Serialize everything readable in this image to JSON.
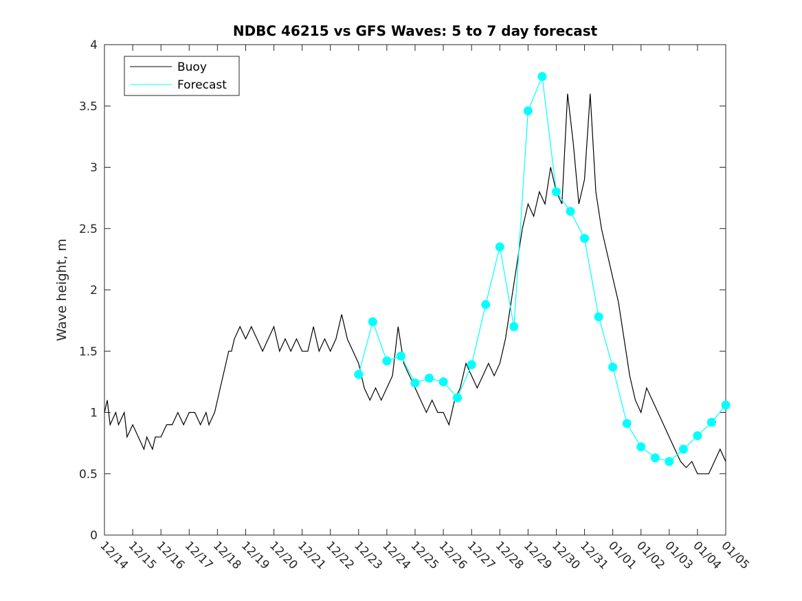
{
  "chart_data": {
    "type": "line",
    "title": "NDBC 46215 vs GFS Waves: 5 to 7 day forecast",
    "xlabel": "",
    "ylabel": "Wave height, m",
    "xlim": [
      0,
      22
    ],
    "ylim": [
      0,
      4
    ],
    "yticks": [
      0,
      0.5,
      1,
      1.5,
      2,
      2.5,
      3,
      3.5,
      4
    ],
    "ytick_labels": [
      "0",
      "0.5",
      "1",
      "1.5",
      "2",
      "2.5",
      "3",
      "3.5",
      "4"
    ],
    "xtick_labels": [
      "12/14",
      "12/15",
      "12/16",
      "12/17",
      "12/18",
      "12/19",
      "12/20",
      "12/21",
      "12/22",
      "12/23",
      "12/24",
      "12/25",
      "12/26",
      "12/27",
      "12/28",
      "12/29",
      "12/30",
      "12/31",
      "01/01",
      "01/02",
      "01/03",
      "01/04",
      "01/05"
    ],
    "legend": {
      "position": "top-left",
      "entries": [
        {
          "name": "Buoy",
          "color": "#000000"
        },
        {
          "name": "Forecast",
          "color": "#00ffff"
        }
      ]
    },
    "colors": {
      "buoy": "#000000",
      "forecast": "#00ffff"
    },
    "series": [
      {
        "name": "Buoy",
        "color": "#000000",
        "points": [
          [
            0,
            1.0
          ],
          [
            0.1,
            1.1
          ],
          [
            0.2,
            0.9
          ],
          [
            0.4,
            1.0
          ],
          [
            0.5,
            0.9
          ],
          [
            0.7,
            1.0
          ],
          [
            0.8,
            0.8
          ],
          [
            1.0,
            0.9
          ],
          [
            1.2,
            0.8
          ],
          [
            1.4,
            0.7
          ],
          [
            1.5,
            0.8
          ],
          [
            1.7,
            0.7
          ],
          [
            1.8,
            0.8
          ],
          [
            2.0,
            0.8
          ],
          [
            2.2,
            0.9
          ],
          [
            2.4,
            0.9
          ],
          [
            2.6,
            1.0
          ],
          [
            2.8,
            0.9
          ],
          [
            3.0,
            1.0
          ],
          [
            3.2,
            1.0
          ],
          [
            3.4,
            0.9
          ],
          [
            3.6,
            1.0
          ],
          [
            3.7,
            0.9
          ],
          [
            3.9,
            1.0
          ],
          [
            4.0,
            1.1
          ],
          [
            4.1,
            1.2
          ],
          [
            4.2,
            1.3
          ],
          [
            4.3,
            1.4
          ],
          [
            4.4,
            1.5
          ],
          [
            4.5,
            1.5
          ],
          [
            4.6,
            1.6
          ],
          [
            4.8,
            1.7
          ],
          [
            5.0,
            1.6
          ],
          [
            5.2,
            1.7
          ],
          [
            5.4,
            1.6
          ],
          [
            5.6,
            1.5
          ],
          [
            5.8,
            1.6
          ],
          [
            6.0,
            1.7
          ],
          [
            6.2,
            1.5
          ],
          [
            6.4,
            1.6
          ],
          [
            6.6,
            1.5
          ],
          [
            6.8,
            1.6
          ],
          [
            7.0,
            1.5
          ],
          [
            7.2,
            1.5
          ],
          [
            7.4,
            1.7
          ],
          [
            7.6,
            1.5
          ],
          [
            7.8,
            1.6
          ],
          [
            8.0,
            1.5
          ],
          [
            8.2,
            1.6
          ],
          [
            8.4,
            1.8
          ],
          [
            8.6,
            1.6
          ],
          [
            8.8,
            1.5
          ],
          [
            9.0,
            1.4
          ],
          [
            9.2,
            1.2
          ],
          [
            9.4,
            1.1
          ],
          [
            9.6,
            1.2
          ],
          [
            9.8,
            1.1
          ],
          [
            10.0,
            1.2
          ],
          [
            10.2,
            1.3
          ],
          [
            10.4,
            1.7
          ],
          [
            10.6,
            1.4
          ],
          [
            10.8,
            1.3
          ],
          [
            11.0,
            1.2
          ],
          [
            11.2,
            1.1
          ],
          [
            11.4,
            1.0
          ],
          [
            11.6,
            1.1
          ],
          [
            11.8,
            1.0
          ],
          [
            12.0,
            1.0
          ],
          [
            12.2,
            0.9
          ],
          [
            12.4,
            1.1
          ],
          [
            12.6,
            1.2
          ],
          [
            12.8,
            1.4
          ],
          [
            13.0,
            1.3
          ],
          [
            13.2,
            1.2
          ],
          [
            13.4,
            1.3
          ],
          [
            13.6,
            1.4
          ],
          [
            13.8,
            1.3
          ],
          [
            14.0,
            1.4
          ],
          [
            14.2,
            1.6
          ],
          [
            14.4,
            1.9
          ],
          [
            14.6,
            2.2
          ],
          [
            14.8,
            2.5
          ],
          [
            15.0,
            2.7
          ],
          [
            15.2,
            2.6
          ],
          [
            15.4,
            2.8
          ],
          [
            15.6,
            2.7
          ],
          [
            15.8,
            3.0
          ],
          [
            16.0,
            2.8
          ],
          [
            16.2,
            2.7
          ],
          [
            16.4,
            3.6
          ],
          [
            16.6,
            3.2
          ],
          [
            16.8,
            2.7
          ],
          [
            17.0,
            2.9
          ],
          [
            17.2,
            3.6
          ],
          [
            17.4,
            2.8
          ],
          [
            17.6,
            2.5
          ],
          [
            17.8,
            2.3
          ],
          [
            18.0,
            2.1
          ],
          [
            18.2,
            1.9
          ],
          [
            18.4,
            1.6
          ],
          [
            18.6,
            1.3
          ],
          [
            18.8,
            1.1
          ],
          [
            19.0,
            1.0
          ],
          [
            19.2,
            1.2
          ],
          [
            19.4,
            1.1
          ],
          [
            19.6,
            1.0
          ],
          [
            19.8,
            0.9
          ],
          [
            20.0,
            0.8
          ],
          [
            20.2,
            0.7
          ],
          [
            20.4,
            0.6
          ],
          [
            20.6,
            0.55
          ],
          [
            20.8,
            0.6
          ],
          [
            21.0,
            0.5
          ],
          [
            21.2,
            0.5
          ],
          [
            21.4,
            0.5
          ],
          [
            21.6,
            0.6
          ],
          [
            21.8,
            0.7
          ],
          [
            22.0,
            0.6
          ]
        ]
      },
      {
        "name": "Forecast",
        "color": "#00ffff",
        "markers": [
          [
            9.0,
            1.31
          ],
          [
            9.5,
            1.74
          ],
          [
            10.0,
            1.42
          ],
          [
            10.5,
            1.46
          ],
          [
            11.0,
            1.24
          ],
          [
            11.5,
            1.28
          ],
          [
            12.0,
            1.25
          ],
          [
            12.5,
            1.12
          ],
          [
            13.0,
            1.39
          ],
          [
            13.5,
            1.88
          ],
          [
            14.0,
            2.35
          ],
          [
            14.5,
            1.7
          ],
          [
            15.0,
            3.46
          ],
          [
            15.5,
            3.74
          ],
          [
            16.0,
            2.8
          ],
          [
            16.5,
            2.64
          ],
          [
            17.0,
            2.42
          ],
          [
            17.5,
            1.78
          ],
          [
            18.0,
            1.37
          ],
          [
            18.5,
            0.91
          ],
          [
            19.0,
            0.72
          ],
          [
            19.5,
            0.63
          ],
          [
            20.0,
            0.6
          ],
          [
            20.5,
            0.7
          ],
          [
            21.0,
            0.81
          ],
          [
            21.5,
            0.92
          ],
          [
            22.0,
            1.06
          ]
        ]
      }
    ]
  }
}
